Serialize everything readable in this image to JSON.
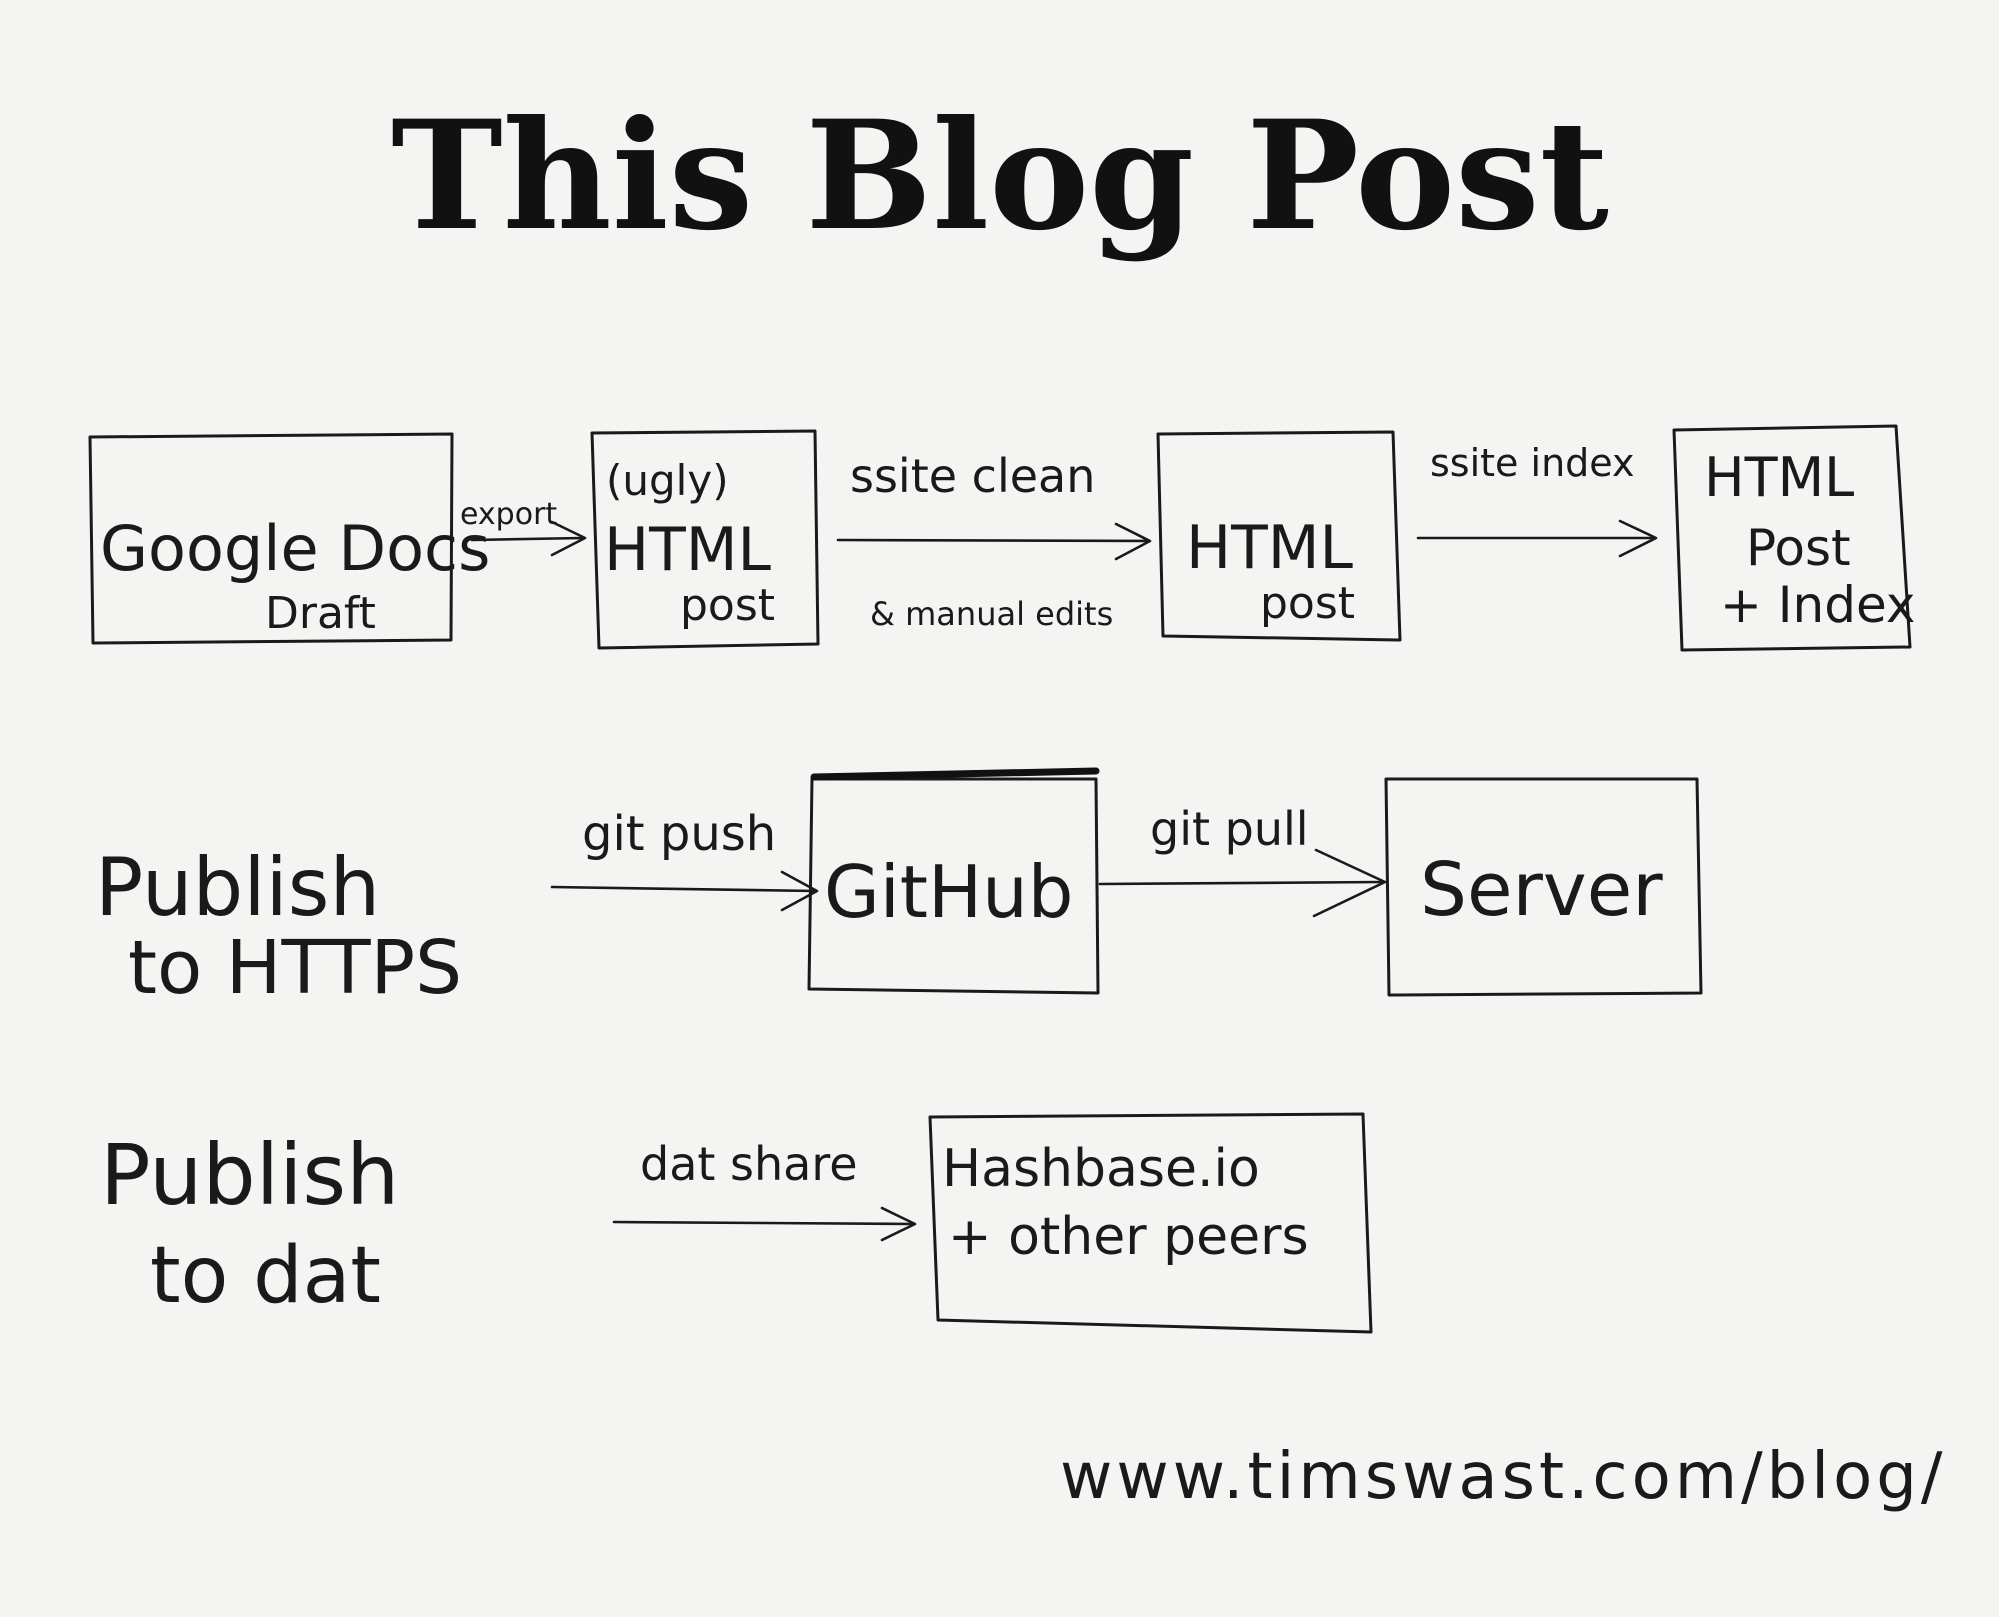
{
  "title": "This Blog Post",
  "row1": {
    "boxes": [
      {
        "lines": [
          "Google Docs",
          "Draft"
        ]
      },
      {
        "lines": [
          "(ugly)",
          "HTML",
          "post"
        ]
      },
      {
        "lines": [
          "HTML",
          "post"
        ]
      },
      {
        "lines": [
          "HTML",
          "Post",
          "+ Index"
        ]
      }
    ],
    "arrows": [
      {
        "label": "export"
      },
      {
        "label": "ssite clean",
        "sublabel": "& manual edits"
      },
      {
        "label": "ssite index"
      }
    ]
  },
  "row2": {
    "label_lines": [
      "Publish",
      "to HTTPS"
    ],
    "arrows": [
      {
        "label": "git push"
      },
      {
        "label": "git pull"
      }
    ],
    "boxes": [
      {
        "lines": [
          "GitHub"
        ]
      },
      {
        "lines": [
          "Server"
        ]
      }
    ]
  },
  "row3": {
    "label_lines": [
      "Publish",
      "to dat"
    ],
    "arrows": [
      {
        "label": "dat share"
      }
    ],
    "boxes": [
      {
        "lines": [
          "Hashbase.io",
          "+ other peers"
        ]
      }
    ]
  },
  "footer": {
    "url": "www.timswast.com/blog/"
  }
}
